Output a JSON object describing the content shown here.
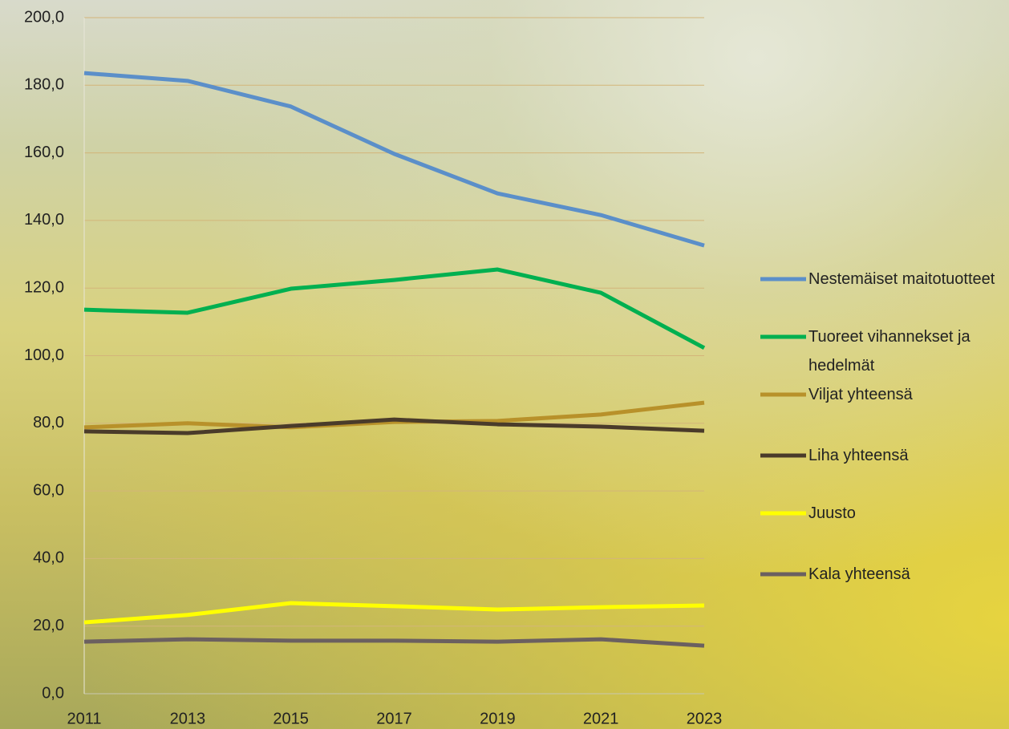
{
  "chart_data": {
    "type": "line",
    "x": [
      2011,
      2013,
      2015,
      2017,
      2019,
      2021,
      2023
    ],
    "xlim": [
      2011,
      2023
    ],
    "xticks": [
      2011,
      2013,
      2015,
      2017,
      2019,
      2021,
      2023
    ],
    "ylim": [
      0,
      200
    ],
    "yticks": [
      {
        "value": 0,
        "label": "0,0"
      },
      {
        "value": 20,
        "label": "20,0"
      },
      {
        "value": 40,
        "label": "40,0"
      },
      {
        "value": 60,
        "label": "60,0"
      },
      {
        "value": 80,
        "label": "80,0"
      },
      {
        "value": 100,
        "label": "100,0"
      },
      {
        "value": 120,
        "label": "120,0"
      },
      {
        "value": 140,
        "label": "140,0"
      },
      {
        "value": 160,
        "label": "160,0"
      },
      {
        "value": 180,
        "label": "180,0"
      },
      {
        "value": 200,
        "label": "200,0"
      }
    ],
    "grid": true,
    "legend": "right",
    "series": [
      {
        "name": "Nestemäiset maitotuotteet",
        "color": "#5b8fc9",
        "values": [
          183.6,
          181.3,
          173.7,
          159.7,
          148.0,
          141.6,
          132.6
        ]
      },
      {
        "name": "Tuoreet vihannekset ja hedelmät",
        "color": "#00b050",
        "values": [
          113.6,
          112.7,
          119.8,
          122.4,
          125.5,
          118.6,
          102.3
        ]
      },
      {
        "name": "Viljat yhteensä",
        "color": "#b8912a",
        "values": [
          78.8,
          80.0,
          78.8,
          80.4,
          80.7,
          82.6,
          86.1
        ]
      },
      {
        "name": "Liha yhteensä",
        "color": "#4a3b2a",
        "values": [
          77.6,
          77.1,
          79.2,
          81.1,
          79.7,
          79.0,
          77.8
        ]
      },
      {
        "name": "Juusto",
        "color": "#ffff00",
        "values": [
          21.1,
          23.3,
          26.8,
          25.9,
          24.9,
          25.6,
          26.1
        ]
      },
      {
        "name": "Kala yhteensä",
        "color": "#6b6060",
        "values": [
          15.4,
          16.1,
          15.7,
          15.7,
          15.4,
          16.1,
          14.2
        ]
      }
    ]
  }
}
